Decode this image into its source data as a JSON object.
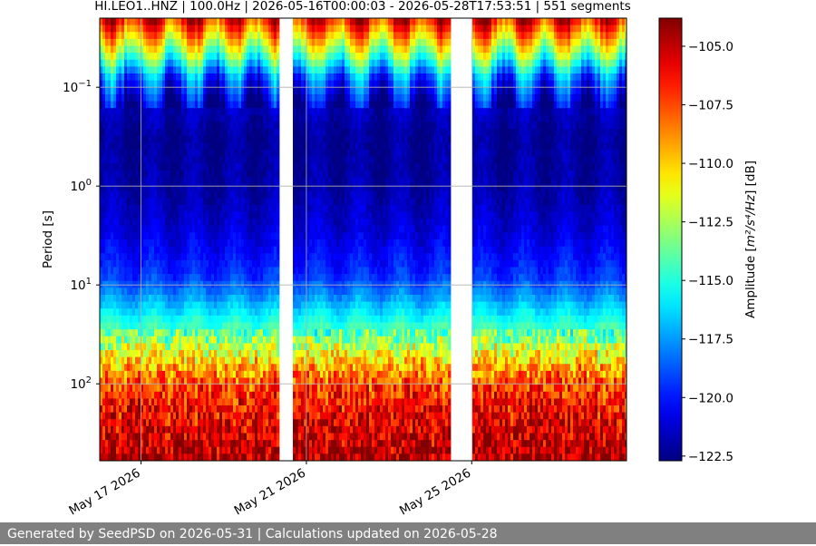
{
  "footer_text": "Generated by SeedPSD on 2026-05-31 | Calculations updated on 2026-05-28",
  "chart_data": {
    "type": "heatmap",
    "title": "HI.LEO1..HNZ | 100.0Hz | 2026-05-16T00:00:03 - 2026-05-28T17:53:51 | 551 segments",
    "xlabel": "",
    "ylabel": "Period [s]",
    "y_scale": "log",
    "y_inverted": true,
    "ylim": [
      0.02,
      600
    ],
    "xlim": [
      "2026-05-16",
      "2026-05-28T17:53:51"
    ],
    "x_ticks": [
      {
        "value": "2026-05-17",
        "label": "May 17 2026"
      },
      {
        "value": "2026-05-21",
        "label": "May 21 2026"
      },
      {
        "value": "2026-05-25",
        "label": "May 25 2026"
      }
    ],
    "y_ticks": [
      {
        "value": 0.1,
        "base": "10",
        "exp": "−1"
      },
      {
        "value": 1,
        "base": "10",
        "exp": "0"
      },
      {
        "value": 10,
        "base": "10",
        "exp": "1"
      },
      {
        "value": 100,
        "base": "10",
        "exp": "2"
      }
    ],
    "grid": true,
    "data_gaps": [
      [
        "2026-05-20T08:00",
        "2026-05-20T16:00"
      ],
      [
        "2026-05-24T12:00",
        "2026-05-25T00:00"
      ]
    ],
    "colormap": "jet",
    "colorbar": {
      "label_prefix": "Amplitude [",
      "label_math": "m²/s⁴/Hz",
      "label_suffix": "] [dB]",
      "range": [
        -122.7,
        -103.8
      ],
      "ticks": [
        "−105.0",
        "−107.5",
        "−110.0",
        "−112.5",
        "−115.0",
        "−117.5",
        "−120.0",
        "−122.5"
      ],
      "tick_values": [
        -105.0,
        -107.5,
        -110.0,
        -112.5,
        -115.0,
        -117.5,
        -120.0,
        -122.5
      ]
    },
    "amplitude_profile": {
      "period_s": [
        0.02,
        0.03,
        0.05,
        0.08,
        0.15,
        0.3,
        1,
        3,
        8,
        15,
        30,
        60,
        100,
        200,
        400,
        600
      ],
      "amplitude_db": [
        -106.0,
        -109.5,
        -114.0,
        -118.5,
        -121.5,
        -122.3,
        -122.0,
        -121.0,
        -119.5,
        -117.0,
        -114.0,
        -110.0,
        -107.5,
        -106.0,
        -105.0,
        -104.5
      ]
    }
  }
}
